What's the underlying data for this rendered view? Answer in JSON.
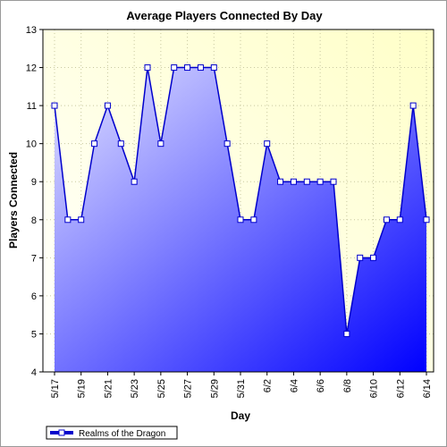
{
  "chart_data": {
    "type": "area",
    "title": "Average Players Connected By Day",
    "xlabel": "Day",
    "ylabel": "Players Connected",
    "ylim": [
      4,
      13
    ],
    "yticks": [
      4,
      5,
      6,
      7,
      8,
      9,
      10,
      11,
      12,
      13
    ],
    "x": [
      "5/17",
      "5/18",
      "5/19",
      "5/20",
      "5/21",
      "5/22",
      "5/23",
      "5/24",
      "5/25",
      "5/26",
      "5/27",
      "5/28",
      "5/29",
      "5/30",
      "5/31",
      "6/1",
      "6/2",
      "6/3",
      "6/4",
      "6/5",
      "6/6",
      "6/7",
      "6/8",
      "6/9",
      "6/10",
      "6/11",
      "6/12",
      "6/13",
      "6/14"
    ],
    "xtick_labels": [
      "5/17",
      "5/19",
      "5/21",
      "5/23",
      "5/25",
      "5/27",
      "5/29",
      "5/31",
      "6/2",
      "6/4",
      "6/6",
      "6/8",
      "6/10",
      "6/12",
      "6/14"
    ],
    "series": [
      {
        "name": "Realms of the Dragon",
        "values": [
          11,
          8,
          8,
          10,
          11,
          10,
          9,
          12,
          10,
          12,
          12,
          12,
          12,
          10,
          8,
          8,
          10,
          9,
          9,
          9,
          9,
          9,
          5,
          7,
          7,
          8,
          8,
          11,
          8
        ]
      }
    ],
    "grid": true,
    "legend_position": "bottom-left",
    "colors": {
      "line": "#0000cc",
      "fill_start": "#e0e0ff",
      "fill_end": "#0000ff",
      "plot_bg_start": "#fffff8",
      "plot_bg_end": "#ffffcc",
      "grid": "#c8c8a0"
    }
  }
}
